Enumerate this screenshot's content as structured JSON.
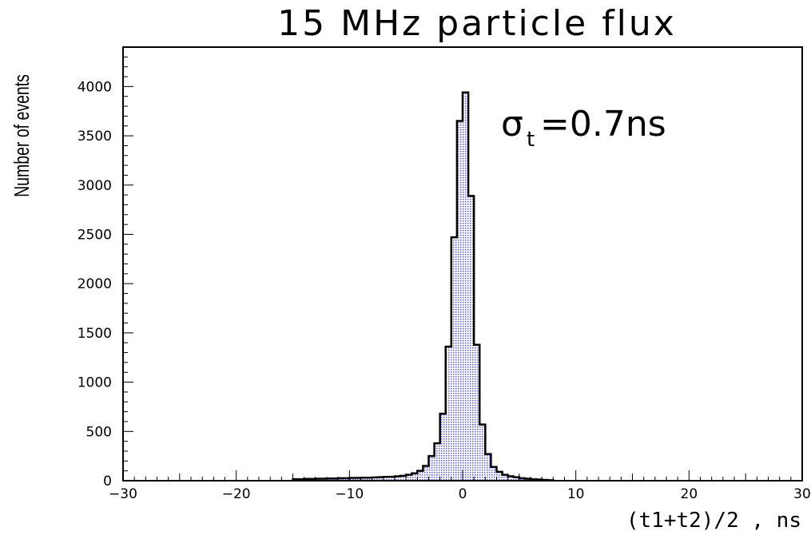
{
  "chart_data": {
    "type": "bar",
    "title": "15 MHz particle flux",
    "xlabel": "(t1+t2)/2 , ns",
    "ylabel": "Number of events",
    "xlim": [
      -30,
      30
    ],
    "ylim": [
      0,
      4400
    ],
    "x_ticks": [
      {
        "value": -30,
        "label": "−30"
      },
      {
        "value": -20,
        "label": "−20"
      },
      {
        "value": -10,
        "label": "−10"
      },
      {
        "value": 0,
        "label": "0"
      },
      {
        "value": 10,
        "label": "10"
      },
      {
        "value": 20,
        "label": "20"
      },
      {
        "value": 30,
        "label": "30"
      }
    ],
    "y_ticks": [
      {
        "value": 0,
        "label": "0"
      },
      {
        "value": 500,
        "label": "500"
      },
      {
        "value": 1000,
        "label": "1000"
      },
      {
        "value": 1500,
        "label": "1500"
      },
      {
        "value": 2000,
        "label": "2000"
      },
      {
        "value": 2500,
        "label": "2500"
      },
      {
        "value": 3000,
        "label": "3000"
      },
      {
        "value": 3500,
        "label": "3500"
      },
      {
        "value": 4000,
        "label": "4000"
      }
    ],
    "annotation": {
      "symbol": "σ",
      "subscript": "t",
      "text": "=0.7ns"
    },
    "bin_width": 0.5,
    "bins": [
      {
        "x": -15.0,
        "y": 15
      },
      {
        "x": -14.5,
        "y": 15
      },
      {
        "x": -14.0,
        "y": 18
      },
      {
        "x": -13.5,
        "y": 18
      },
      {
        "x": -13.0,
        "y": 20
      },
      {
        "x": -12.5,
        "y": 20
      },
      {
        "x": -12.0,
        "y": 22
      },
      {
        "x": -11.5,
        "y": 22
      },
      {
        "x": -11.0,
        "y": 25
      },
      {
        "x": -10.5,
        "y": 25
      },
      {
        "x": -10.0,
        "y": 28
      },
      {
        "x": -9.5,
        "y": 28
      },
      {
        "x": -9.0,
        "y": 30
      },
      {
        "x": -8.5,
        "y": 30
      },
      {
        "x": -8.0,
        "y": 33
      },
      {
        "x": -7.5,
        "y": 35
      },
      {
        "x": -7.0,
        "y": 38
      },
      {
        "x": -6.5,
        "y": 40
      },
      {
        "x": -6.0,
        "y": 45
      },
      {
        "x": -5.5,
        "y": 50
      },
      {
        "x": -5.0,
        "y": 60
      },
      {
        "x": -4.5,
        "y": 75
      },
      {
        "x": -4.0,
        "y": 100
      },
      {
        "x": -3.5,
        "y": 150
      },
      {
        "x": -3.0,
        "y": 250
      },
      {
        "x": -2.5,
        "y": 380
      },
      {
        "x": -2.0,
        "y": 680
      },
      {
        "x": -1.5,
        "y": 1360
      },
      {
        "x": -1.0,
        "y": 2470
      },
      {
        "x": -0.5,
        "y": 3650
      },
      {
        "x": 0.0,
        "y": 3940
      },
      {
        "x": 0.5,
        "y": 2890
      },
      {
        "x": 1.0,
        "y": 1380
      },
      {
        "x": 1.5,
        "y": 570
      },
      {
        "x": 2.0,
        "y": 270
      },
      {
        "x": 2.5,
        "y": 140
      },
      {
        "x": 3.0,
        "y": 90
      },
      {
        "x": 3.5,
        "y": 60
      },
      {
        "x": 4.0,
        "y": 45
      },
      {
        "x": 4.5,
        "y": 35
      },
      {
        "x": 5.0,
        "y": 25
      },
      {
        "x": 5.5,
        "y": 20
      },
      {
        "x": 6.0,
        "y": 15
      },
      {
        "x": 6.5,
        "y": 12
      },
      {
        "x": 7.0,
        "y": 8
      },
      {
        "x": 7.5,
        "y": 5
      }
    ],
    "fill_color": "#8080e0",
    "line_color": "#000000",
    "grid": false
  }
}
